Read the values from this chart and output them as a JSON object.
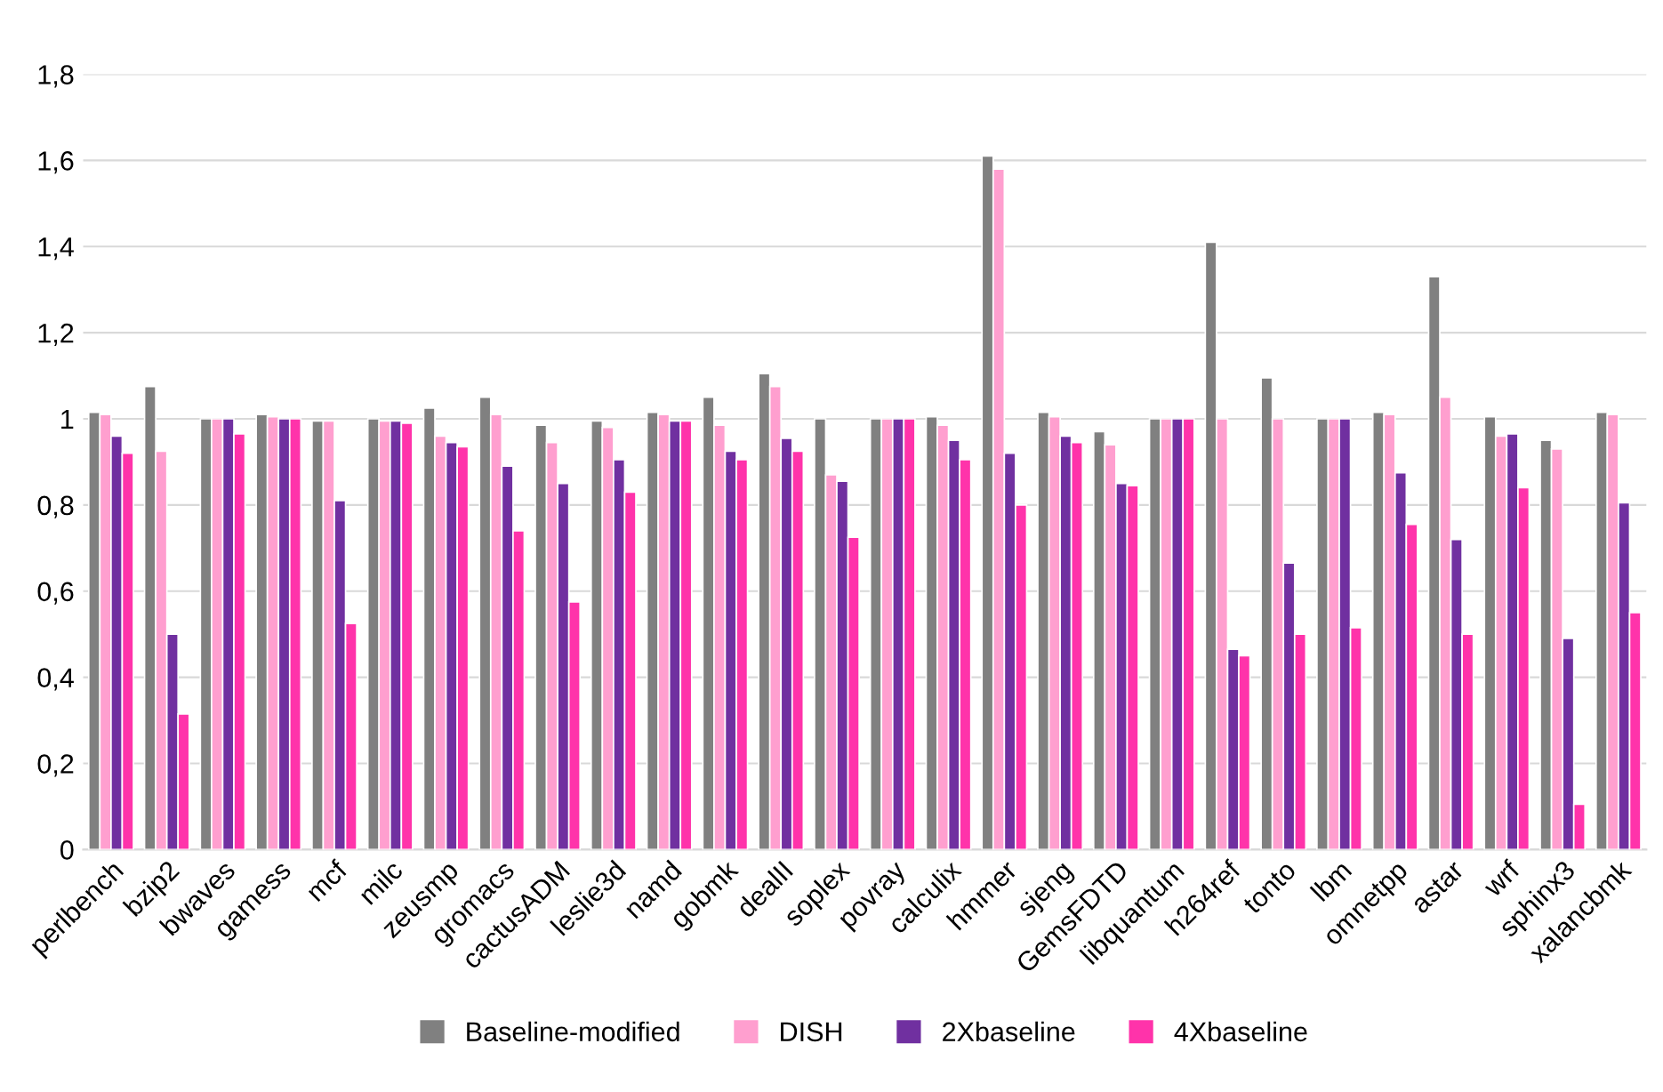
{
  "chart_data": {
    "type": "bar",
    "categories": [
      "perlbench",
      "bzip2",
      "bwaves",
      "gamess",
      "mcf",
      "milc",
      "zeusmp",
      "gromacs",
      "cactusADM",
      "leslie3d",
      "namd",
      "gobmk",
      "dealII",
      "soplex",
      "povray",
      "calculix",
      "hmmer",
      "sjeng",
      "GemsFDTD",
      "libquantum",
      "h264ref",
      "tonto",
      "lbm",
      "omnetpp",
      "astar",
      "wrf",
      "sphinx3",
      "xalancbmk"
    ],
    "series": [
      {
        "name": "Baseline-modified",
        "color": "#808080",
        "values": [
          1.015,
          1.075,
          1.0,
          1.01,
          0.995,
          1.0,
          1.025,
          1.05,
          0.985,
          0.995,
          1.015,
          1.05,
          1.105,
          1.0,
          1.0,
          1.005,
          1.61,
          1.015,
          0.97,
          1.0,
          1.41,
          1.095,
          1.0,
          1.015,
          1.33,
          1.005,
          0.95,
          1.015
        ]
      },
      {
        "name": "DISH",
        "color": "#ff9fcf",
        "values": [
          1.01,
          0.925,
          1.0,
          1.005,
          0.995,
          0.995,
          0.96,
          1.01,
          0.945,
          0.98,
          1.01,
          0.985,
          1.075,
          0.87,
          1.0,
          0.985,
          1.58,
          1.005,
          0.94,
          1.0,
          1.0,
          1.0,
          1.0,
          1.01,
          1.05,
          0.96,
          0.93,
          1.01
        ]
      },
      {
        "name": "2Xbaseline",
        "color": "#7030a0",
        "values": [
          0.96,
          0.5,
          1.0,
          1.0,
          0.81,
          0.995,
          0.945,
          0.89,
          0.85,
          0.905,
          0.995,
          0.925,
          0.955,
          0.855,
          1.0,
          0.95,
          0.92,
          0.96,
          0.85,
          1.0,
          0.465,
          0.665,
          1.0,
          0.875,
          0.72,
          0.965,
          0.49,
          0.805
        ]
      },
      {
        "name": "4Xbaseline",
        "color": "#ff33aa",
        "values": [
          0.92,
          0.315,
          0.965,
          1.0,
          0.525,
          0.99,
          0.935,
          0.74,
          0.575,
          0.83,
          0.995,
          0.905,
          0.925,
          0.725,
          1.0,
          0.905,
          0.8,
          0.945,
          0.845,
          1.0,
          0.45,
          0.5,
          0.515,
          0.755,
          0.5,
          0.84,
          0.105,
          0.55
        ]
      }
    ],
    "ylim": [
      0,
      1.8
    ],
    "yticks": [
      0,
      {
        "value": 0.2,
        "label": "0,2"
      },
      {
        "value": 0.4,
        "label": "0,4"
      },
      {
        "value": 0.6,
        "label": "0,6"
      },
      {
        "value": 0.8,
        "label": "0,8"
      },
      1,
      {
        "value": 1.2,
        "label": "1,2"
      },
      {
        "value": 1.4,
        "label": "1,4"
      },
      {
        "value": 1.6,
        "label": "1,6"
      },
      {
        "value": 1.8,
        "label": "1,8"
      }
    ],
    "grid": "y",
    "legend": "bottom"
  }
}
